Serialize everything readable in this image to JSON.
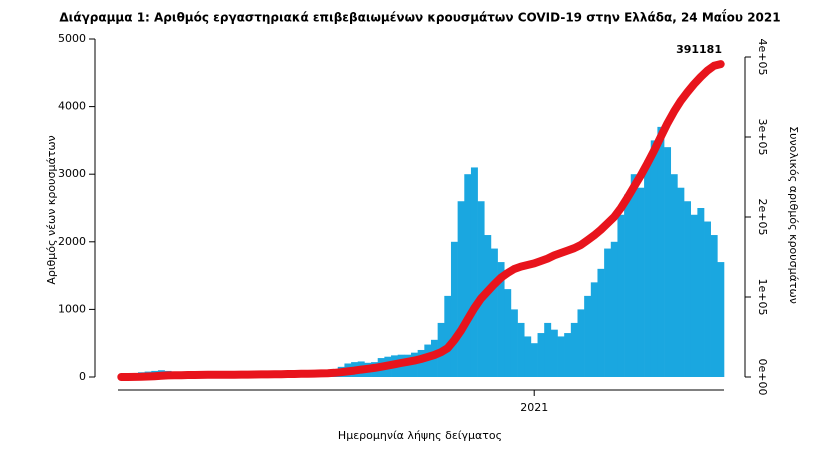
{
  "chart_data": {
    "type": "bar",
    "title": "Διάγραμμα 1: Αριθμός εργαστηριακά επιβεβαιωμένων κρουσμάτων COVID-19 στην Ελλάδα, 24 Μαΐου 2021",
    "x_label": "Ημερομηνία λήψης δείγματος",
    "y_label": "Αριθμός νέων κρουσμάτων",
    "y2_label": "Συνολικός αριθμός κρουσμάτων",
    "categories": [
      null,
      null,
      null,
      null,
      null,
      null,
      null,
      null,
      null,
      null,
      null,
      null,
      null,
      null,
      null,
      null,
      null,
      null,
      null,
      null,
      null,
      null,
      null,
      null,
      null,
      null,
      null,
      null,
      null,
      null,
      null,
      null,
      null,
      null,
      null,
      null,
      null,
      null,
      null,
      null,
      null,
      null,
      null,
      null,
      null,
      null,
      null,
      null,
      null,
      null,
      null,
      null,
      null,
      null,
      null,
      null,
      null,
      null,
      null,
      null,
      null,
      null,
      "2021",
      null,
      null,
      null,
      null,
      null,
      null,
      null,
      null,
      null,
      null,
      null,
      null,
      null,
      null,
      null,
      null,
      null,
      null,
      null,
      null,
      null,
      null,
      null,
      null,
      null,
      null,
      null,
      null
    ],
    "series": [
      {
        "type": "bar",
        "color": "#1aa7e0",
        "values": [
          5,
          20,
          50,
          70,
          80,
          90,
          100,
          90,
          70,
          60,
          60,
          40,
          20,
          15,
          15,
          15,
          15,
          12,
          10,
          15,
          20,
          25,
          20,
          20,
          25,
          30,
          30,
          30,
          30,
          35,
          40,
          60,
          100,
          150,
          200,
          220,
          230,
          210,
          220,
          280,
          300,
          320,
          330,
          330,
          360,
          400,
          480,
          550,
          800,
          1200,
          2000,
          2600,
          3000,
          3100,
          2600,
          2100,
          1900,
          1700,
          1300,
          1000,
          800,
          600,
          500,
          650,
          800,
          700,
          600,
          650,
          800,
          1000,
          1200,
          1400,
          1600,
          1900,
          2000,
          2400,
          2700,
          3000,
          2800,
          3200,
          3500,
          3700,
          3400,
          3000,
          2800,
          2600,
          2400,
          2500,
          2300,
          2100,
          1700
        ]
      },
      {
        "type": "line",
        "axis": "y2",
        "color": "#e8141c",
        "values": [
          0,
          0,
          100,
          300,
          600,
          1000,
          1500,
          2000,
          2100,
          2300,
          2500,
          2500,
          2600,
          2700,
          2800,
          2850,
          2900,
          2900,
          2950,
          3000,
          3100,
          3200,
          3300,
          3400,
          3500,
          3700,
          3800,
          4000,
          4100,
          4300,
          4500,
          4800,
          5300,
          6000,
          7000,
          8000,
          9300,
          10300,
          11400,
          12800,
          14300,
          15900,
          17500,
          19000,
          20500,
          22500,
          25000,
          27500,
          31000,
          36000,
          46000,
          58000,
          72000,
          86000,
          98000,
          107000,
          116000,
          124000,
          130000,
          135000,
          138000,
          140000,
          142000,
          145000,
          148000,
          152000,
          155000,
          158000,
          161000,
          165000,
          171000,
          177000,
          184000,
          192000,
          200000,
          211000,
          224000,
          238000,
          252000,
          267000,
          283000,
          300000,
          317000,
          332000,
          345000,
          356000,
          366000,
          375000,
          383000,
          389000,
          391181
        ]
      }
    ],
    "annotations": [
      {
        "text": "391181",
        "value": 391181
      }
    ],
    "ylim": [
      0,
      5000
    ],
    "yticks": [
      0,
      1000,
      2000,
      3000,
      4000,
      5000
    ],
    "y2lim": [
      0,
      422500
    ],
    "y2ticks": [
      {
        "value": 0,
        "label": "0e+00"
      },
      {
        "value": 100000,
        "label": "1e+05"
      },
      {
        "value": 200000,
        "label": "2e+05"
      },
      {
        "value": 300000,
        "label": "3e+05"
      },
      {
        "value": 400000,
        "label": "4e+05"
      }
    ]
  }
}
